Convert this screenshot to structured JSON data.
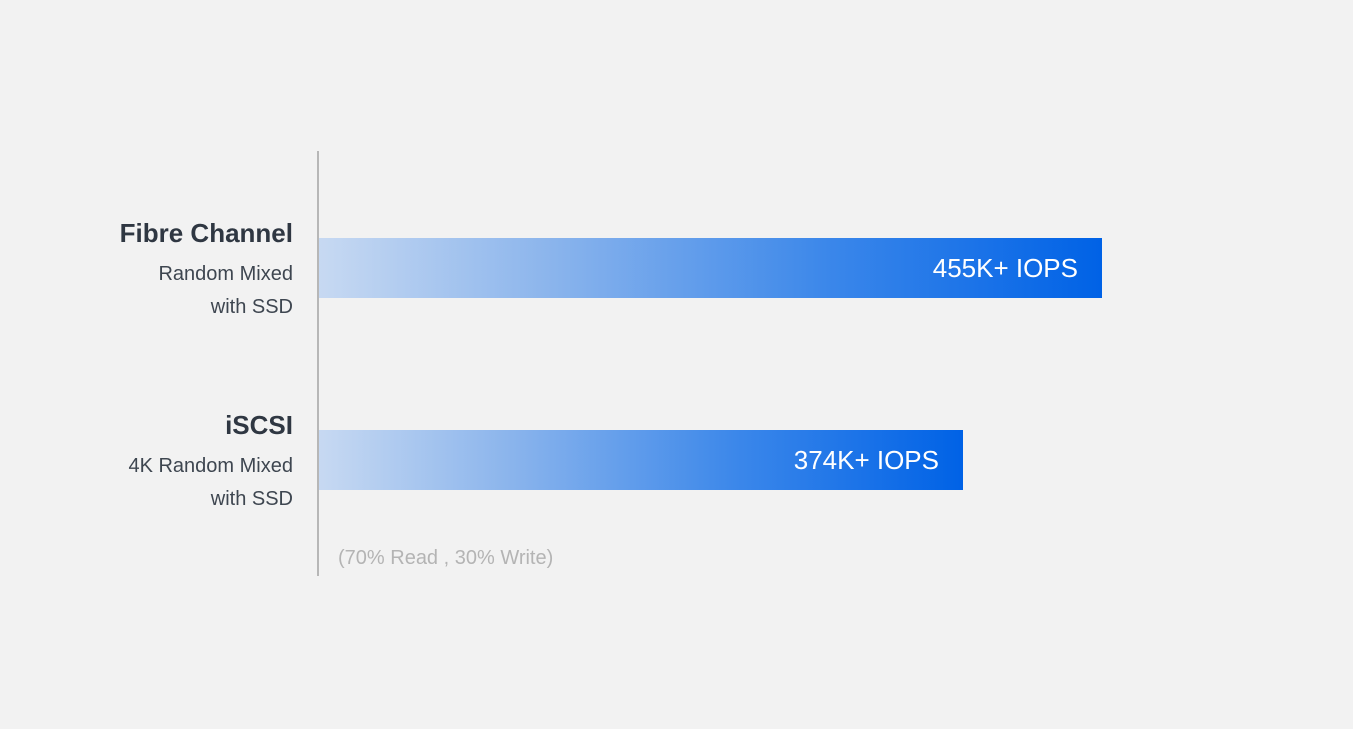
{
  "chart_data": {
    "type": "bar",
    "orientation": "horizontal",
    "categories": [
      "Fibre Channel",
      "iSCSI"
    ],
    "category_subtitles": [
      "Random Mixed\nwith SSD",
      "4K Random Mixed\nwith SSD"
    ],
    "values": [
      455,
      374
    ],
    "unit": "K IOPS",
    "data_labels": [
      "455K+ IOPS",
      "374K+ IOPS"
    ],
    "footnote": "(70% Read , 30% Write)",
    "xlim": [
      0,
      455
    ],
    "grid": false,
    "legend": "none",
    "colors": {
      "bar_start": "#c7d9f2",
      "bar_end": "#0062e6",
      "label": "#ffffff",
      "axis": "#b7b7b7",
      "background": "#f2f2f2"
    }
  }
}
